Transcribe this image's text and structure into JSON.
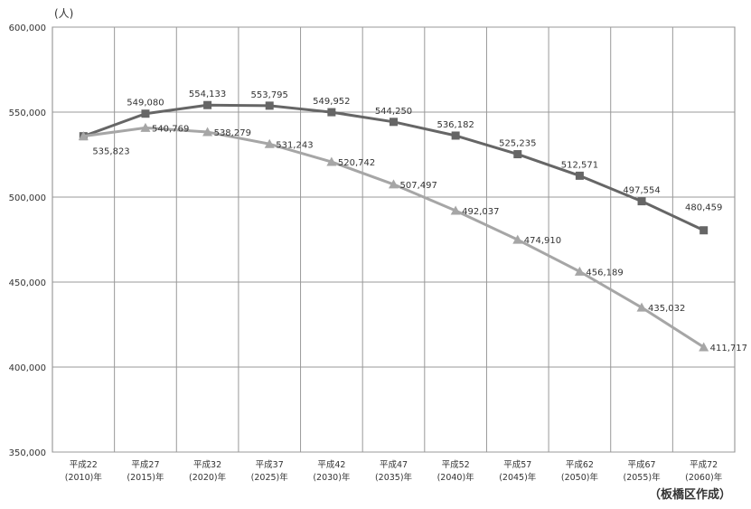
{
  "chart_data": {
    "type": "line",
    "unit_label": "(人)",
    "source_label": "（板橋区作成）",
    "ylim": [
      350000,
      600000
    ],
    "ytick_labels": [
      "350,000",
      "400,000",
      "450,000",
      "500,000",
      "550,000",
      "600,000"
    ],
    "categories": [
      [
        "平成22",
        "(2010)年"
      ],
      [
        "平成27",
        "(2015)年"
      ],
      [
        "平成32",
        "(2020)年"
      ],
      [
        "平成37",
        "(2025)年"
      ],
      [
        "平成42",
        "(2030)年"
      ],
      [
        "平成47",
        "(2035)年"
      ],
      [
        "平成52",
        "(2040)年"
      ],
      [
        "平成57",
        "(2045)年"
      ],
      [
        "平成62",
        "(2050)年"
      ],
      [
        "平成67",
        "(2055)年"
      ],
      [
        "平成72",
        "(2060)年"
      ]
    ],
    "grid": true,
    "series": [
      {
        "marker": "square",
        "color": "#666666",
        "values": [
          535823,
          549080,
          554133,
          553795,
          549952,
          544250,
          536182,
          525235,
          512571,
          497554,
          480459
        ],
        "labels": [
          "",
          "549,080",
          "554,133",
          "553,795",
          "549,952",
          "544,250",
          "536,182",
          "525,235",
          "512,571",
          "497,554",
          "480,459"
        ]
      },
      {
        "marker": "triangle",
        "color": "#a6a6a6",
        "values": [
          535823,
          540769,
          538279,
          531243,
          520742,
          507497,
          492037,
          474910,
          456189,
          435032,
          411717
        ],
        "labels": [
          "535,823",
          "540,769",
          "538,279",
          "531,243",
          "520,742",
          "507,497",
          "492,037",
          "474,910",
          "456,189",
          "435,032",
          "411,717"
        ]
      }
    ]
  }
}
